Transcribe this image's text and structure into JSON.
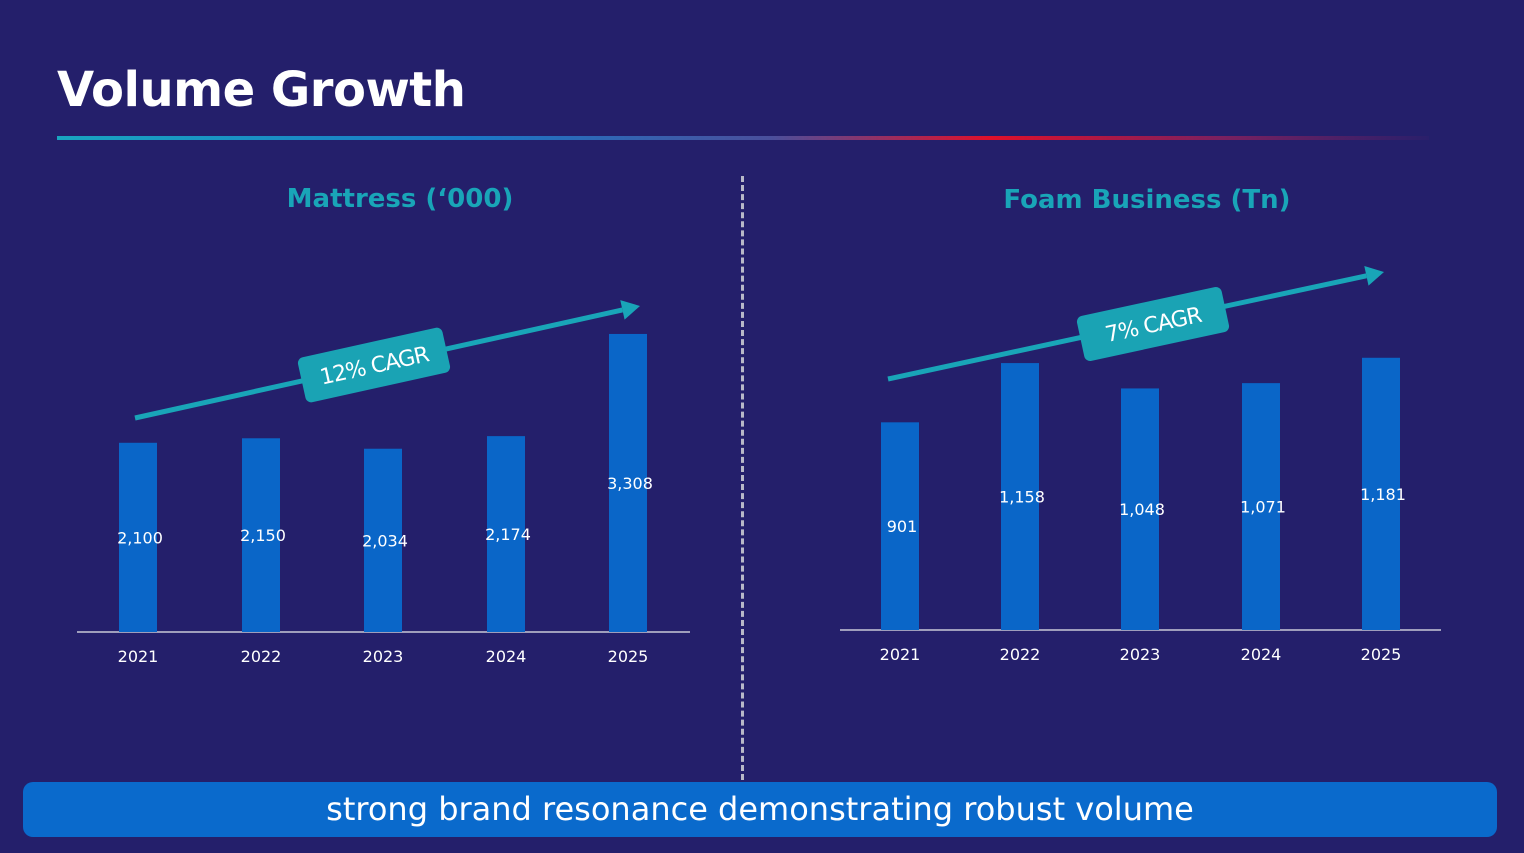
{
  "slide": {
    "title": "Volume Growth",
    "footer": "strong brand resonance demonstrating robust volume"
  },
  "colors": {
    "background": "#241f6b",
    "bar": "#0a66c8",
    "accent": "#19a5b8",
    "text": "#ffffff"
  },
  "chart_data": [
    {
      "type": "bar",
      "title": "Mattress (‘000)",
      "categories": [
        "2021",
        "2022",
        "2023",
        "2024",
        "2025"
      ],
      "values": [
        2100,
        2150,
        2034,
        2174,
        3308
      ],
      "value_labels": [
        "2,100",
        "2,150",
        "2,034",
        "2,174",
        "3,308"
      ],
      "annotation": "12% CAGR",
      "ylim": [
        0,
        3500
      ]
    },
    {
      "type": "bar",
      "title": "Foam Business (Tn)",
      "categories": [
        "2021",
        "2022",
        "2023",
        "2024",
        "2025"
      ],
      "values": [
        901,
        1158,
        1048,
        1071,
        1181
      ],
      "value_labels": [
        "901",
        "1,158",
        "1,048",
        "1,071",
        "1,181"
      ],
      "annotation": "7% CAGR",
      "ylim": [
        0,
        1300
      ]
    }
  ]
}
